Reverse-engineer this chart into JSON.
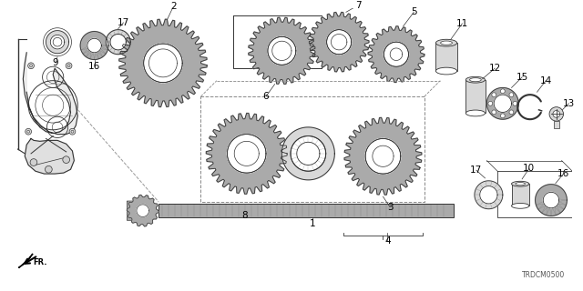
{
  "title": "",
  "bg_color": "#ffffff",
  "line_color": "#333333",
  "diagram_code": "TRDCM0500",
  "gray_light": "#d8d8d8",
  "gray_mid": "#aaaaaa",
  "gray_dark": "#777777",
  "gray_fill": "#bbbbbb"
}
